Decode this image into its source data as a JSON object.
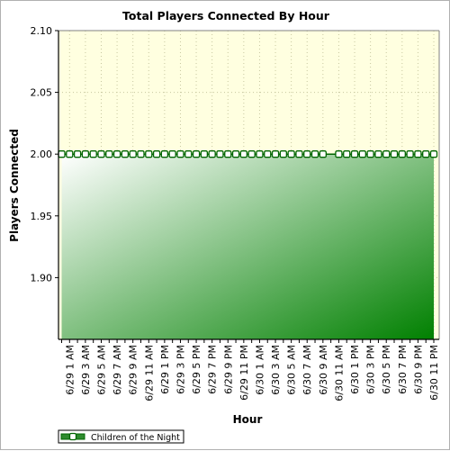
{
  "chart_data": {
    "type": "area",
    "title": "Total Players Connected By Hour",
    "xlabel": "Hour",
    "ylabel": "Players Connected",
    "ylim": [
      1.85,
      2.1
    ],
    "yticks": [
      "1.90",
      "1.95",
      "2.00",
      "2.05",
      "2.10"
    ],
    "x_tick_labels": [
      "6/29 1 AM",
      "6/29 3 AM",
      "6/29 5 AM",
      "6/29 7 AM",
      "6/29 9 AM",
      "6/29 11 AM",
      "6/29 1 PM",
      "6/29 3 PM",
      "6/29 5 PM",
      "6/29 7 PM",
      "6/29 9 PM",
      "6/29 11 PM",
      "6/30 1 AM",
      "6/30 3 AM",
      "6/30 5 AM",
      "6/30 7 AM",
      "6/30 9 AM",
      "6/30 11 AM",
      "6/30 1 PM",
      "6/30 3 PM",
      "6/30 5 PM",
      "6/30 7 PM",
      "6/30 9 PM",
      "6/30 11 PM"
    ],
    "x_hours": [
      "6/29 12 AM",
      "6/29 1 AM",
      "6/29 2 AM",
      "6/29 3 AM",
      "6/29 4 AM",
      "6/29 5 AM",
      "6/29 6 AM",
      "6/29 7 AM",
      "6/29 8 AM",
      "6/29 9 AM",
      "6/29 10 AM",
      "6/29 11 AM",
      "6/29 12 PM",
      "6/29 1 PM",
      "6/29 2 PM",
      "6/29 3 PM",
      "6/29 4 PM",
      "6/29 5 PM",
      "6/29 6 PM",
      "6/29 7 PM",
      "6/29 8 PM",
      "6/29 9 PM",
      "6/29 10 PM",
      "6/29 11 PM",
      "6/30 12 AM",
      "6/30 1 AM",
      "6/30 2 AM",
      "6/30 3 AM",
      "6/30 4 AM",
      "6/30 5 AM",
      "6/30 6 AM",
      "6/30 7 AM",
      "6/30 8 AM",
      "6/30 9 AM",
      "6/30 10 AM",
      "6/30 11 AM",
      "6/30 12 PM",
      "6/30 1 PM",
      "6/30 2 PM",
      "6/30 3 PM",
      "6/30 4 PM",
      "6/30 5 PM",
      "6/30 6 PM",
      "6/30 7 PM",
      "6/30 8 PM",
      "6/30 9 PM",
      "6/30 10 PM",
      "6/30 11 PM"
    ],
    "series": [
      {
        "name": "Children of the Night",
        "values": [
          2,
          2,
          2,
          2,
          2,
          2,
          2,
          2,
          2,
          2,
          2,
          2,
          2,
          2,
          2,
          2,
          2,
          2,
          2,
          2,
          2,
          2,
          2,
          2,
          2,
          2,
          2,
          2,
          2,
          2,
          2,
          2,
          2,
          2,
          2,
          2,
          2,
          2,
          2,
          2,
          2,
          2,
          2,
          2,
          2,
          2,
          2,
          2
        ],
        "missing_marker_hours": [
          "6/30 10 AM"
        ]
      }
    ],
    "grid": true,
    "legend_position": "bottom-left",
    "colors": {
      "plot_background": "#ffffe0",
      "area_light": "#ffffff",
      "area_dark": "#008000",
      "line": "#006400",
      "marker_fill": "#ffffff"
    }
  }
}
